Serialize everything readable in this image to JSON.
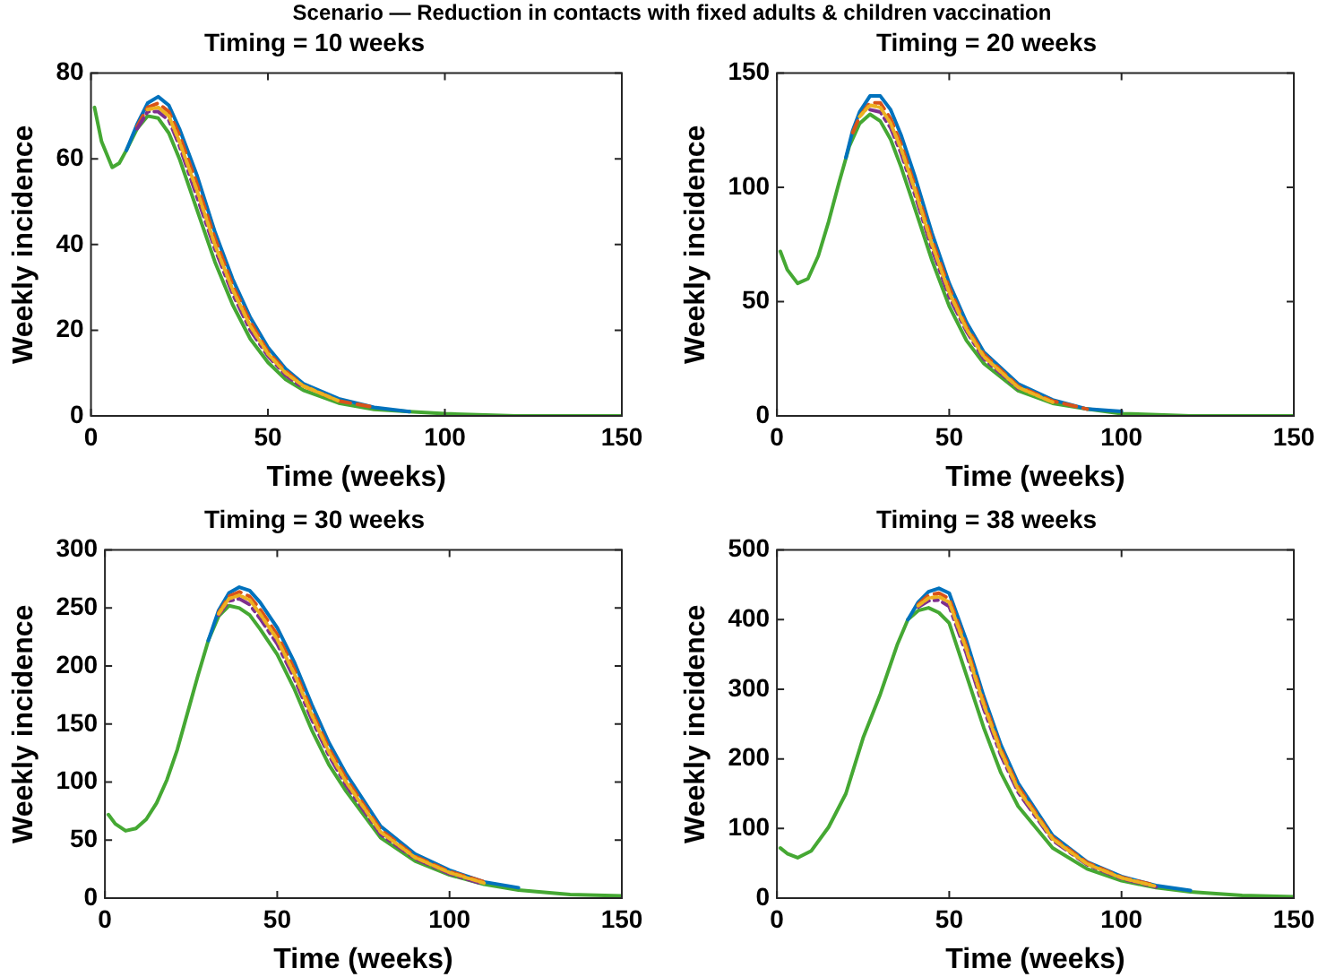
{
  "chart_data": [
    {
      "type": "line",
      "title": "Timing = 10 weeks",
      "xlabel": "Time (weeks)",
      "ylabel": "Weekly incidence",
      "annotations": [
        "Scenario — Reduction in contacts with fixed adults & children vaccination"
      ],
      "xlim": [
        0,
        150
      ],
      "xticks": [
        0,
        50,
        100,
        150
      ],
      "ylim": [
        0,
        80
      ],
      "yticks": [
        0,
        20,
        40,
        60,
        80
      ],
      "marker": "none",
      "series": [
        {
          "color": "#0072bd",
          "line_style": "solid",
          "x": [
            10,
            13,
            16,
            19,
            22,
            25,
            30,
            35,
            40,
            45,
            50,
            55,
            60,
            70,
            80,
            90
          ],
          "values": [
            62,
            68,
            73,
            74.5,
            72.5,
            67,
            56,
            43,
            32,
            23,
            16,
            11,
            7.5,
            4,
            2,
            1
          ]
        },
        {
          "color": "#d95319",
          "line_style": "dashed",
          "x": [
            13,
            16,
            19,
            22,
            25,
            30,
            35,
            40,
            45,
            50,
            55,
            60,
            70,
            80
          ],
          "values": [
            67.5,
            72,
            73,
            71,
            65.5,
            54,
            41.5,
            30.5,
            22,
            15,
            10.5,
            7,
            3.5,
            2
          ]
        },
        {
          "color": "#edb120",
          "line_style": "dotted",
          "x": [
            16,
            19,
            22,
            25,
            30,
            35,
            40,
            45,
            50,
            55,
            60,
            70
          ],
          "values": [
            71.5,
            72,
            70,
            64,
            52.5,
            40,
            29.5,
            21,
            14.5,
            10,
            7,
            3.5
          ]
        },
        {
          "color": "#7e2f8e",
          "line_style": "dashdot",
          "x": [
            13,
            16,
            19,
            22,
            25,
            30,
            35,
            40,
            45,
            50,
            55,
            60
          ],
          "values": [
            67,
            71,
            71,
            69,
            63,
            51,
            39,
            28.5,
            20,
            14,
            9.5,
            6.5
          ]
        },
        {
          "color": "#45a833",
          "line_style": "solid",
          "x": [
            1,
            3,
            6,
            8,
            10,
            13,
            16,
            19,
            22,
            25,
            30,
            35,
            40,
            45,
            50,
            55,
            60,
            70,
            80,
            90,
            100,
            120,
            150
          ],
          "values": [
            72,
            64,
            58,
            59,
            62,
            67,
            70,
            69.5,
            66,
            60,
            48,
            36,
            26,
            18,
            12.5,
            8.5,
            6,
            3,
            1.5,
            1,
            0.5,
            0,
            0
          ]
        }
      ]
    },
    {
      "type": "line",
      "title": "Timing = 20 weeks",
      "xlabel": "Time (weeks)",
      "ylabel": "Weekly incidence",
      "xlim": [
        0,
        150
      ],
      "xticks": [
        0,
        50,
        100,
        150
      ],
      "ylim": [
        0,
        150
      ],
      "yticks": [
        0,
        50,
        100,
        150
      ],
      "marker": "none",
      "series": [
        {
          "color": "#0072bd",
          "line_style": "solid",
          "x": [
            20,
            22,
            24,
            27,
            30,
            33,
            36,
            40,
            45,
            50,
            55,
            60,
            70,
            80,
            90,
            100
          ],
          "values": [
            113,
            125,
            133,
            140,
            140,
            134,
            123,
            105,
            80,
            58,
            41,
            28,
            14,
            7,
            3,
            2
          ]
        },
        {
          "color": "#d95319",
          "line_style": "dashed",
          "x": [
            22,
            24,
            27,
            30,
            33,
            36,
            40,
            45,
            50,
            55,
            60,
            70,
            80,
            90
          ],
          "values": [
            124,
            131,
            137,
            137,
            130,
            119,
            101,
            77,
            56,
            39,
            27,
            13,
            6.5,
            3
          ]
        },
        {
          "color": "#edb120",
          "line_style": "dotted",
          "x": [
            24,
            27,
            30,
            33,
            36,
            40,
            45,
            50,
            55,
            60,
            70,
            80
          ],
          "values": [
            131,
            136,
            135,
            128,
            117,
            99,
            75,
            54,
            38,
            26,
            12.5,
            6
          ]
        },
        {
          "color": "#7e2f8e",
          "line_style": "dashdot",
          "x": [
            27,
            30,
            33,
            36,
            40,
            45,
            50,
            55,
            60,
            70
          ],
          "values": [
            134,
            133,
            126,
            115,
            97,
            73,
            52,
            37,
            25,
            12
          ]
        },
        {
          "color": "#45a833",
          "line_style": "solid",
          "x": [
            1,
            3,
            6,
            9,
            12,
            15,
            18,
            21,
            24,
            27,
            30,
            33,
            36,
            40,
            45,
            50,
            55,
            60,
            70,
            80,
            90,
            100,
            120,
            150
          ],
          "values": [
            72,
            64,
            58,
            60,
            70,
            85,
            102,
            118,
            128,
            132,
            129,
            121,
            109,
            91,
            68,
            48,
            33,
            23,
            11,
            5.5,
            3,
            1,
            0,
            0
          ]
        }
      ]
    },
    {
      "type": "line",
      "title": "Timing = 30 weeks",
      "xlabel": "Time (weeks)",
      "ylabel": "Weekly incidence",
      "xlim": [
        0,
        150
      ],
      "xticks": [
        0,
        50,
        100,
        150
      ],
      "ylim": [
        0,
        300
      ],
      "yticks": [
        0,
        50,
        100,
        150,
        200,
        250,
        300
      ],
      "marker": "none",
      "series": [
        {
          "color": "#0072bd",
          "line_style": "solid",
          "x": [
            30,
            33,
            36,
            39,
            42,
            45,
            50,
            55,
            60,
            65,
            70,
            80,
            90,
            100,
            110,
            120
          ],
          "values": [
            222,
            248,
            263,
            268,
            265,
            255,
            233,
            203,
            167,
            134,
            107,
            62,
            38,
            24,
            14,
            9
          ]
        },
        {
          "color": "#d95319",
          "line_style": "dashed",
          "x": [
            33,
            36,
            39,
            42,
            45,
            50,
            55,
            60,
            65,
            70,
            80,
            90,
            100,
            110
          ],
          "values": [
            246,
            260,
            264,
            260,
            249,
            227,
            197,
            161,
            129,
            103,
            59,
            36,
            23,
            14
          ]
        },
        {
          "color": "#edb120",
          "line_style": "dotted",
          "x": [
            33,
            36,
            39,
            42,
            45,
            50,
            55,
            60,
            65,
            70,
            80,
            90,
            100,
            110
          ],
          "values": [
            245,
            258,
            261,
            257,
            245,
            223,
            193,
            158,
            126,
            100,
            57,
            35,
            22,
            13
          ]
        },
        {
          "color": "#7e2f8e",
          "line_style": "dashdot",
          "x": [
            33,
            36,
            39,
            42,
            45,
            50,
            55,
            60,
            65,
            70,
            80,
            90,
            100,
            110
          ],
          "values": [
            244,
            256,
            258,
            253,
            241,
            219,
            189,
            154,
            123,
            97,
            55,
            34,
            21,
            12
          ]
        },
        {
          "color": "#45a833",
          "line_style": "solid",
          "x": [
            1,
            3,
            6,
            9,
            12,
            15,
            18,
            21,
            24,
            27,
            30,
            33,
            36,
            39,
            42,
            45,
            50,
            55,
            60,
            65,
            70,
            80,
            90,
            100,
            110,
            120,
            135,
            150
          ],
          "values": [
            72,
            64,
            58,
            60,
            68,
            82,
            102,
            128,
            160,
            192,
            222,
            243,
            252,
            250,
            244,
            232,
            210,
            180,
            145,
            115,
            92,
            52,
            32,
            20,
            12,
            7,
            3,
            2
          ]
        }
      ]
    },
    {
      "type": "line",
      "title": "Timing = 38 weeks",
      "xlabel": "Time (weeks)",
      "ylabel": "Weekly incidence",
      "xlim": [
        0,
        150
      ],
      "xticks": [
        0,
        50,
        100,
        150
      ],
      "ylim": [
        0,
        500
      ],
      "yticks": [
        0,
        100,
        200,
        300,
        400,
        500
      ],
      "marker": "none",
      "series": [
        {
          "color": "#0072bd",
          "line_style": "solid",
          "x": [
            38,
            41,
            44,
            47,
            50,
            55,
            60,
            65,
            70,
            80,
            90,
            100,
            110,
            120
          ],
          "values": [
            400,
            425,
            440,
            445,
            438,
            370,
            290,
            220,
            165,
            90,
            52,
            31,
            18,
            11
          ]
        },
        {
          "color": "#d95319",
          "line_style": "dashed",
          "x": [
            41,
            44,
            47,
            50,
            55,
            60,
            65,
            70,
            80,
            90,
            100,
            110
          ],
          "values": [
            422,
            435,
            438,
            430,
            362,
            283,
            214,
            160,
            87,
            51,
            30,
            18
          ]
        },
        {
          "color": "#edb120",
          "line_style": "dotted",
          "x": [
            41,
            44,
            47,
            50,
            55,
            60,
            65,
            70,
            80,
            90,
            100,
            110
          ],
          "values": [
            420,
            431,
            433,
            425,
            357,
            278,
            210,
            156,
            85,
            49,
            29,
            17
          ]
        },
        {
          "color": "#7e2f8e",
          "line_style": "dashdot",
          "x": [
            41,
            44,
            47,
            50,
            55,
            60,
            65,
            70,
            80,
            90,
            100,
            110
          ],
          "values": [
            418,
            427,
            428,
            419,
            351,
            272,
            205,
            152,
            83,
            48,
            28,
            16
          ]
        },
        {
          "color": "#45a833",
          "line_style": "solid",
          "x": [
            1,
            3,
            6,
            10,
            15,
            20,
            25,
            30,
            35,
            38,
            41,
            44,
            47,
            50,
            55,
            60,
            65,
            70,
            80,
            90,
            100,
            110,
            120,
            135,
            150
          ],
          "values": [
            72,
            64,
            58,
            68,
            102,
            150,
            230,
            293,
            365,
            400,
            413,
            417,
            410,
            395,
            320,
            245,
            180,
            132,
            72,
            42,
            25,
            15,
            9,
            4,
            2
          ]
        }
      ]
    }
  ]
}
